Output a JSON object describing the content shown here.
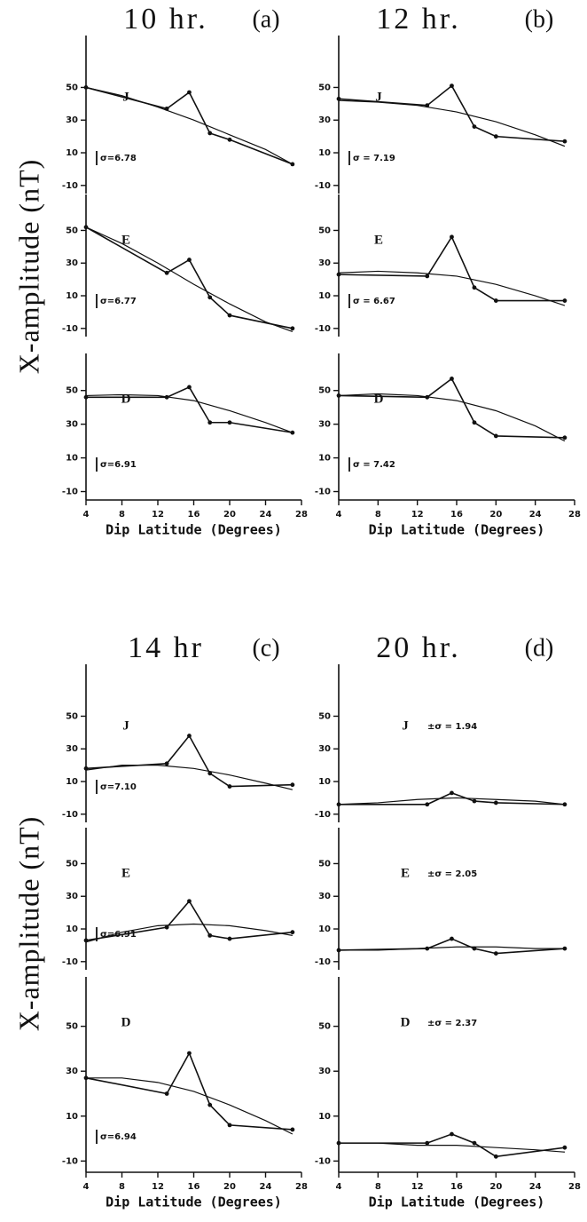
{
  "chart_data": [
    {
      "type": "line",
      "title": "10 hr.",
      "panel": "(a)",
      "label": "J",
      "annotation": "σ=6.78",
      "xlim": [
        4,
        28
      ],
      "ylim": [
        -15,
        72
      ],
      "yticks": [
        -10,
        10,
        30,
        50
      ],
      "series": [
        {
          "color": "#111",
          "markers": true,
          "x": [
            4,
            13,
            15.5,
            17.8,
            20,
            27
          ],
          "values": [
            50,
            37,
            47,
            22,
            18,
            3
          ]
        },
        {
          "color": "#111",
          "markers": false,
          "x": [
            4,
            8,
            12,
            16,
            20,
            24,
            27
          ],
          "values": [
            50,
            45,
            38,
            30,
            21,
            12,
            3
          ]
        }
      ]
    },
    {
      "type": "line",
      "ylabel": "X-amplitude (nT)",
      "label": "E",
      "annotation": "σ=6.77",
      "xlim": [
        4,
        28
      ],
      "ylim": [
        -15,
        72
      ],
      "yticks": [
        -10,
        10,
        30,
        50
      ],
      "series": [
        {
          "color": "#111",
          "markers": true,
          "x": [
            4,
            13,
            15.5,
            17.8,
            20,
            27
          ],
          "values": [
            52,
            24,
            32,
            9,
            -2,
            -10
          ]
        },
        {
          "color": "#111",
          "markers": false,
          "x": [
            4,
            8,
            12,
            16,
            20,
            24,
            27
          ],
          "values": [
            52,
            42,
            30,
            17,
            5,
            -6,
            -12
          ]
        }
      ]
    },
    {
      "type": "line",
      "xlabel": "Dip Latitude (Degrees)",
      "label": "D",
      "annotation": "σ=6.91",
      "xlim": [
        4,
        28
      ],
      "ylim": [
        -15,
        72
      ],
      "yticks": [
        -10,
        10,
        30,
        50
      ],
      "xticks": [
        4,
        8,
        12,
        16,
        20,
        24,
        28
      ],
      "series": [
        {
          "color": "#111",
          "markers": true,
          "x": [
            4,
            13,
            15.5,
            17.8,
            20,
            27
          ],
          "values": [
            46,
            46,
            52,
            31,
            31,
            25
          ]
        },
        {
          "color": "#111",
          "markers": false,
          "x": [
            4,
            8,
            12,
            16,
            20,
            24,
            27
          ],
          "values": [
            47,
            47.5,
            47,
            44,
            38,
            31,
            25
          ]
        }
      ]
    },
    {
      "type": "line",
      "title": "12 hr.",
      "panel": "(b)",
      "label": "J",
      "annotation": "σ = 7.19",
      "xlim": [
        4,
        28
      ],
      "ylim": [
        -15,
        72
      ],
      "yticks": [
        -10,
        10,
        30,
        50
      ],
      "series": [
        {
          "color": "#111",
          "markers": true,
          "x": [
            4,
            13,
            15.5,
            17.8,
            20,
            27
          ],
          "values": [
            43,
            39,
            51,
            26,
            20,
            17
          ]
        },
        {
          "color": "#111",
          "markers": false,
          "x": [
            4,
            8,
            12,
            16,
            20,
            24,
            27
          ],
          "values": [
            42,
            41,
            39,
            35,
            29,
            21,
            14
          ]
        }
      ]
    },
    {
      "type": "line",
      "label": "E",
      "annotation": "σ = 6.67",
      "xlim": [
        4,
        28
      ],
      "ylim": [
        -15,
        72
      ],
      "yticks": [
        -10,
        10,
        30,
        50
      ],
      "series": [
        {
          "color": "#111",
          "markers": true,
          "x": [
            4,
            13,
            15.5,
            17.8,
            20,
            27
          ],
          "values": [
            23,
            22,
            46,
            15,
            7,
            7
          ]
        },
        {
          "color": "#111",
          "markers": false,
          "x": [
            4,
            8,
            12,
            16,
            20,
            24,
            27
          ],
          "values": [
            24,
            25,
            24,
            22,
            17,
            10,
            4
          ]
        }
      ]
    },
    {
      "type": "line",
      "xlabel": "Dip Latitude (Degrees)",
      "label": "D",
      "annotation": "σ = 7.42",
      "xlim": [
        4,
        28
      ],
      "ylim": [
        -15,
        72
      ],
      "yticks": [
        -10,
        10,
        30,
        50
      ],
      "xticks": [
        4,
        8,
        12,
        16,
        20,
        24,
        28
      ],
      "series": [
        {
          "color": "#111",
          "markers": true,
          "x": [
            4,
            13,
            15.5,
            17.8,
            20,
            27
          ],
          "values": [
            47,
            46,
            57,
            31,
            23,
            22
          ]
        },
        {
          "color": "#111",
          "markers": false,
          "x": [
            4,
            8,
            12,
            16,
            20,
            24,
            27
          ],
          "values": [
            47,
            48,
            47,
            44,
            38,
            29,
            20
          ]
        }
      ]
    },
    {
      "type": "line",
      "title": "14 hr",
      "panel": "(c)",
      "label": "J",
      "annotation": "σ=7.10",
      "xlim": [
        4,
        28
      ],
      "ylim": [
        -15,
        72
      ],
      "yticks": [
        -10,
        10,
        30,
        50
      ],
      "series": [
        {
          "color": "#111",
          "markers": true,
          "x": [
            4,
            13,
            15.5,
            17.8,
            20,
            27
          ],
          "values": [
            18,
            21,
            38,
            15,
            7,
            8
          ]
        },
        {
          "color": "#111",
          "markers": false,
          "x": [
            4,
            8,
            12,
            16,
            20,
            24,
            27
          ],
          "values": [
            17,
            20,
            20,
            18,
            14,
            9,
            5
          ]
        }
      ]
    },
    {
      "type": "line",
      "ylabel": "X-amplitude (nT)",
      "label": "E",
      "annotation": "σ=6.91",
      "xlim": [
        4,
        28
      ],
      "ylim": [
        -15,
        72
      ],
      "yticks": [
        -10,
        10,
        30,
        50
      ],
      "series": [
        {
          "color": "#111",
          "markers": true,
          "x": [
            4,
            13,
            15.5,
            17.8,
            20,
            27
          ],
          "values": [
            3,
            11,
            27,
            6,
            4,
            8
          ]
        },
        {
          "color": "#111",
          "markers": false,
          "x": [
            4,
            8,
            12,
            16,
            20,
            24,
            27
          ],
          "values": [
            2,
            8,
            12,
            13,
            12,
            9,
            6
          ]
        }
      ]
    },
    {
      "type": "line",
      "xlabel": "Dip Latitude (Degrees)",
      "label": "D",
      "annotation": "σ=6.94",
      "xlim": [
        4,
        28
      ],
      "ylim": [
        -15,
        72
      ],
      "yticks": [
        -10,
        10,
        30,
        50
      ],
      "xticks": [
        4,
        8,
        12,
        16,
        20,
        24,
        28
      ],
      "series": [
        {
          "color": "#111",
          "markers": true,
          "x": [
            4,
            13,
            15.5,
            17.8,
            20,
            27
          ],
          "values": [
            27,
            20,
            38,
            15,
            6,
            4
          ]
        },
        {
          "color": "#111",
          "markers": false,
          "x": [
            4,
            8,
            12,
            16,
            20,
            24,
            27
          ],
          "values": [
            27,
            27,
            25,
            21,
            15,
            8,
            2
          ]
        }
      ]
    },
    {
      "type": "line",
      "title": "20 hr.",
      "panel": "(d)",
      "label": "J",
      "annotation": "±σ = 1.94",
      "xlim": [
        4,
        28
      ],
      "ylim": [
        -15,
        72
      ],
      "yticks": [
        -10,
        10,
        30,
        50
      ],
      "series": [
        {
          "color": "#111",
          "markers": true,
          "x": [
            4,
            13,
            15.5,
            17.8,
            20,
            27
          ],
          "values": [
            -4,
            -4,
            3,
            -2,
            -3,
            -4
          ]
        },
        {
          "color": "#111",
          "markers": false,
          "x": [
            4,
            8,
            12,
            16,
            20,
            24,
            27
          ],
          "values": [
            -4,
            -3,
            -1,
            0,
            -1,
            -2,
            -4
          ]
        }
      ]
    },
    {
      "type": "line",
      "label": "E",
      "annotation": "±σ = 2.05",
      "xlim": [
        4,
        28
      ],
      "ylim": [
        -15,
        72
      ],
      "yticks": [
        -10,
        10,
        30,
        50
      ],
      "series": [
        {
          "color": "#111",
          "markers": true,
          "x": [
            4,
            13,
            15.5,
            17.8,
            20,
            27
          ],
          "values": [
            -3,
            -2,
            4,
            -2,
            -5,
            -2
          ]
        },
        {
          "color": "#111",
          "markers": false,
          "x": [
            4,
            8,
            12,
            16,
            20,
            24,
            27
          ],
          "values": [
            -3,
            -3,
            -2,
            -1,
            -1,
            -2,
            -2
          ]
        }
      ]
    },
    {
      "type": "line",
      "xlabel": "Dip Latitude (Degrees)",
      "label": "D",
      "annotation": "±σ = 2.37",
      "xlim": [
        4,
        28
      ],
      "ylim": [
        -15,
        72
      ],
      "yticks": [
        -10,
        10,
        30,
        50
      ],
      "xticks": [
        4,
        8,
        12,
        16,
        20,
        24,
        28
      ],
      "series": [
        {
          "color": "#111",
          "markers": true,
          "x": [
            4,
            13,
            15.5,
            17.8,
            20,
            27
          ],
          "values": [
            -2,
            -2,
            2,
            -2,
            -8,
            -4
          ]
        },
        {
          "color": "#111",
          "markers": false,
          "x": [
            4,
            8,
            12,
            16,
            20,
            24,
            27
          ],
          "values": [
            -2,
            -2,
            -3,
            -3,
            -4,
            -5,
            -6
          ]
        }
      ]
    }
  ]
}
